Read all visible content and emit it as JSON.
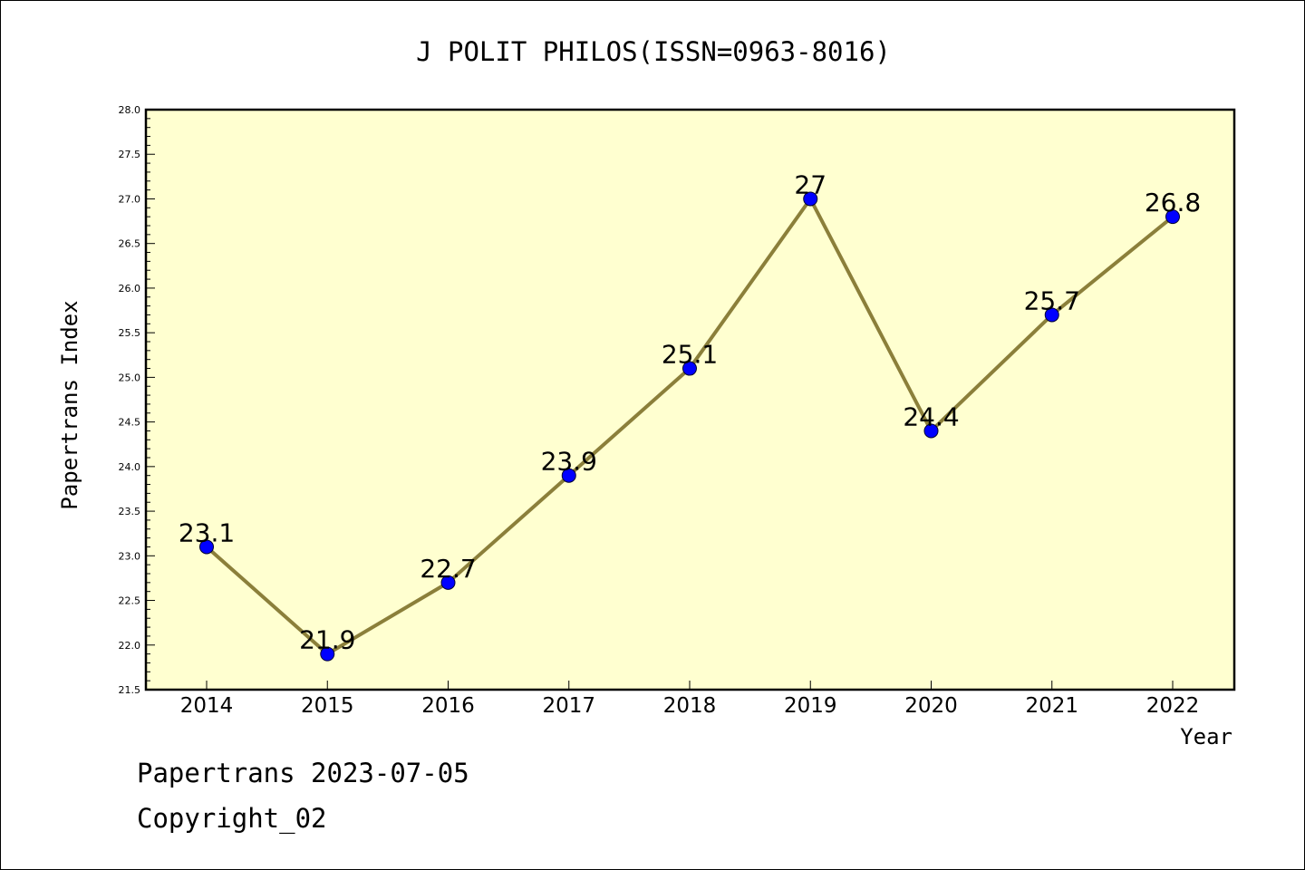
{
  "chart_data": {
    "type": "line",
    "title": "J POLIT PHILOS(ISSN=0963-8016)",
    "xlabel": "Year",
    "ylabel": "Papertrans Index",
    "x": [
      "2014",
      "2015",
      "2016",
      "2017",
      "2018",
      "2019",
      "2020",
      "2021",
      "2022"
    ],
    "series": [
      {
        "values": [
          23.1,
          21.9,
          22.7,
          23.9,
          25.1,
          27,
          24.4,
          25.7,
          26.8
        ],
        "labels": [
          "23.1",
          "21.9",
          "22.7",
          "23.9",
          "25.1",
          "27",
          "24.4",
          "25.7",
          "26.8"
        ]
      }
    ],
    "ylim": [
      21.5,
      28.0
    ],
    "y_major_step": 0.5,
    "y_tick_labels": [
      "21.5",
      "22.0",
      "22.5",
      "23.0",
      "23.5",
      "24.0",
      "24.5",
      "25.0",
      "25.5",
      "26.0",
      "26.5",
      "27.0",
      "27.5",
      "28.0"
    ],
    "grid": false,
    "legend": "none",
    "colors": {
      "plot_background": "#ffffd0",
      "line": "#8b7f3a",
      "marker": "#0000ff"
    }
  },
  "footer": {
    "line1": "Papertrans 2023-07-05",
    "line2": "Copyright_02"
  }
}
